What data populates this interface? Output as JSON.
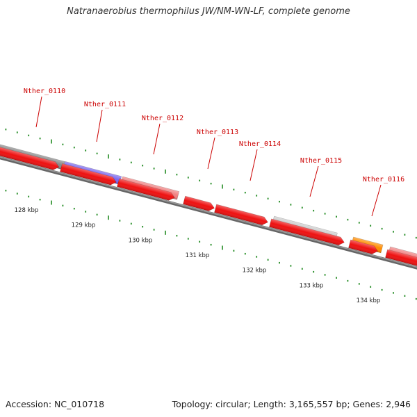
{
  "title": "Natranaerobius thermophilus JW/NM-WN-LF, complete genome",
  "footer": {
    "accession": "Accession: NC_010718",
    "summary": "Topology: circular; Length: 3,165,557 bp; Genes: 2,946"
  },
  "colors": {
    "backbone": "#777777",
    "tick": "#228b22",
    "label": "#cc0000",
    "cds": "#ee1111"
  },
  "ticks": [
    {
      "label": "128 kbp"
    },
    {
      "label": "129 kbp"
    },
    {
      "label": "130 kbp"
    },
    {
      "label": "131 kbp"
    },
    {
      "label": "132 kbp"
    },
    {
      "label": "133 kbp"
    },
    {
      "label": "134 kbp"
    }
  ],
  "genes": [
    {
      "name": "Nther_0110",
      "color": "#888888"
    },
    {
      "name": "Nther_0111",
      "color": "#7b68ee"
    },
    {
      "name": "Nther_0112",
      "color": "#f08080"
    },
    {
      "name": "Nther_0113",
      "color": "#ee1111"
    },
    {
      "name": "Nther_0114",
      "color": "#ee1111"
    },
    {
      "name": "Nther_0115",
      "color": "#cccccc"
    },
    {
      "name": "Nther_0116",
      "color": "#ff8c00"
    }
  ]
}
